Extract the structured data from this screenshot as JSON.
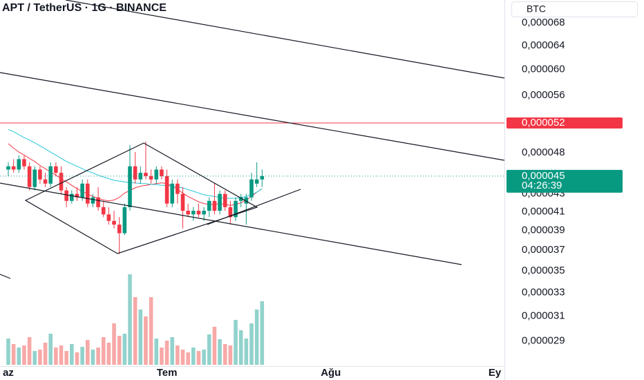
{
  "header": {
    "title": "APT / TetherUS · 1G · BINANCE",
    "currency_button": "BTC"
  },
  "chart_data": {
    "type": "candlestick",
    "categories": [
      "az",
      null,
      null,
      null,
      null,
      null,
      null,
      null,
      null,
      null,
      null,
      null,
      null,
      null,
      null,
      null,
      null,
      null,
      null,
      null,
      null,
      null,
      null,
      null,
      null,
      null,
      null,
      null,
      null,
      null,
      "Tem",
      null,
      null,
      null,
      null,
      null,
      null,
      null,
      null,
      null,
      null,
      null,
      null,
      null,
      null,
      null,
      null,
      null,
      null,
      null,
      null,
      null,
      null,
      null,
      null,
      null,
      null,
      null,
      null,
      null,
      null,
      "Ağu",
      null,
      null,
      null,
      null,
      null,
      null,
      null,
      null,
      null,
      null,
      null,
      null,
      null,
      null,
      null,
      null,
      null,
      null,
      null,
      null,
      null,
      null,
      null,
      null,
      null,
      null,
      null,
      null,
      null,
      null,
      "Ey"
    ],
    "open": [
      4.59e-05,
      4.63e-05,
      4.59e-05,
      4.72e-05,
      4.63e-05,
      4.38e-05,
      4.59e-05,
      4.47e-05,
      4.42e-05,
      4.63e-05,
      4.55e-05,
      4.34e-05,
      4.22e-05,
      4.3e-05,
      4.26e-05,
      4.42e-05,
      4.19e-05,
      4.26e-05,
      4.15e-05,
      4.07e-05,
      4e-05,
      3.96e-05,
      3.87e-05,
      4.15e-05,
      4.63e-05,
      4.47e-05,
      4.55e-05,
      4.51e-05,
      4.47e-05,
      4.59e-05,
      4.51e-05,
      4.19e-05,
      4.42e-05,
      4.3e-05,
      4.11e-05,
      4.07e-05,
      4.11e-05,
      4.07e-05,
      4.11e-05,
      4.22e-05,
      4.11e-05,
      4.3e-05,
      4.15e-05,
      4.04e-05,
      4.22e-05,
      4.19e-05,
      4.26e-05,
      4.42e-05,
      4.47e-05,
      null,
      null,
      null,
      null,
      null,
      null,
      null,
      null,
      null,
      null,
      null,
      null,
      null,
      null,
      null,
      null,
      null,
      null,
      null,
      null,
      null,
      null,
      null,
      null,
      null,
      null,
      null,
      null,
      null,
      null,
      null,
      null,
      null,
      null,
      null,
      null,
      null,
      null,
      null,
      null,
      null,
      null,
      null,
      null
    ],
    "high": [
      4.68e-05,
      4.72e-05,
      4.77e-05,
      4.77e-05,
      4.68e-05,
      4.63e-05,
      4.63e-05,
      4.55e-05,
      4.68e-05,
      4.68e-05,
      4.63e-05,
      4.38e-05,
      4.34e-05,
      4.38e-05,
      4.47e-05,
      4.47e-05,
      4.3e-05,
      4.38e-05,
      4.22e-05,
      4.15e-05,
      4.11e-05,
      4.04e-05,
      4.19e-05,
      4.9e-05,
      4.81e-05,
      4.63e-05,
      4.95e-05,
      4.59e-05,
      4.63e-05,
      4.63e-05,
      4.59e-05,
      4.47e-05,
      4.47e-05,
      4.38e-05,
      4.19e-05,
      4.15e-05,
      4.19e-05,
      4.15e-05,
      4.26e-05,
      4.42e-05,
      4.34e-05,
      4.34e-05,
      4.22e-05,
      4.26e-05,
      4.3e-05,
      4.3e-05,
      4.55e-05,
      4.68e-05,
      4.59e-05,
      null,
      null,
      null,
      null,
      null,
      null,
      null,
      null,
      null,
      null,
      null,
      null,
      null,
      null,
      null,
      null,
      null,
      null,
      null,
      null,
      null,
      null,
      null,
      null,
      null,
      null,
      null,
      null,
      null,
      null,
      null,
      null,
      null,
      null,
      null,
      null,
      null,
      null,
      null,
      null,
      null,
      null,
      null,
      null
    ],
    "low": [
      4.51e-05,
      4.55e-05,
      4.55e-05,
      4.59e-05,
      4.34e-05,
      4.34e-05,
      4.42e-05,
      4.38e-05,
      4.38e-05,
      4.51e-05,
      4.3e-05,
      4.15e-05,
      4.19e-05,
      4.22e-05,
      4.22e-05,
      4.15e-05,
      4.15e-05,
      4.11e-05,
      4.04e-05,
      3.96e-05,
      3.92e-05,
      3.66e-05,
      3.85e-05,
      4.11e-05,
      4.42e-05,
      4.42e-05,
      4.47e-05,
      4.42e-05,
      4.42e-05,
      4.47e-05,
      4.15e-05,
      4.15e-05,
      4.19e-05,
      3.92e-05,
      4.04e-05,
      4e-05,
      4.04e-05,
      4e-05,
      4.04e-05,
      4.07e-05,
      4.07e-05,
      4.11e-05,
      3.96e-05,
      4e-05,
      4.15e-05,
      3.96e-05,
      4.22e-05,
      4.38e-05,
      4.38e-05,
      null,
      null,
      null,
      null,
      null,
      null,
      null,
      null,
      null,
      null,
      null,
      null,
      null,
      null,
      null,
      null,
      null,
      null,
      null,
      null,
      null,
      null,
      null,
      null,
      null,
      null,
      null,
      null,
      null,
      null,
      null,
      null,
      null,
      null,
      null,
      null,
      null,
      null,
      null,
      null,
      null,
      null,
      null,
      null
    ],
    "close": [
      4.63e-05,
      4.59e-05,
      4.72e-05,
      4.63e-05,
      4.38e-05,
      4.59e-05,
      4.47e-05,
      4.42e-05,
      4.63e-05,
      4.55e-05,
      4.34e-05,
      4.22e-05,
      4.3e-05,
      4.26e-05,
      4.42e-05,
      4.19e-05,
      4.26e-05,
      4.15e-05,
      4.07e-05,
      4e-05,
      3.96e-05,
      3.87e-05,
      4.15e-05,
      4.63e-05,
      4.47e-05,
      4.55e-05,
      4.51e-05,
      4.47e-05,
      4.59e-05,
      4.51e-05,
      4.19e-05,
      4.42e-05,
      4.3e-05,
      4.11e-05,
      4.07e-05,
      4.11e-05,
      4.07e-05,
      4.11e-05,
      4.22e-05,
      4.11e-05,
      4.3e-05,
      4.15e-05,
      4.04e-05,
      4.22e-05,
      4.26e-05,
      4.26e-05,
      4.47e-05,
      4.47e-05,
      4.51e-05,
      null,
      null,
      null,
      null,
      null,
      null,
      null,
      null,
      null,
      null,
      null,
      null,
      null,
      null,
      null,
      null,
      null,
      null,
      null,
      null,
      null,
      null,
      null,
      null,
      null,
      null,
      null,
      null,
      null,
      null,
      null,
      null,
      null,
      null,
      null,
      null,
      null,
      null,
      null,
      null,
      null,
      null,
      null,
      null
    ],
    "volume": [
      38,
      30,
      25,
      28,
      40,
      20,
      22,
      32,
      45,
      25,
      28,
      20,
      30,
      18,
      26,
      36,
      22,
      25,
      40,
      32,
      60,
      42,
      45,
      131,
      98,
      80,
      70,
      98,
      38,
      25,
      35,
      40,
      28,
      22,
      18,
      25,
      20,
      22,
      44,
      55,
      37,
      30,
      28,
      65,
      50,
      38,
      60,
      80,
      92,
      null,
      null,
      null,
      null,
      null,
      null,
      null,
      null,
      null,
      null,
      null,
      null,
      null,
      null,
      null,
      null,
      null,
      null,
      null,
      null,
      null,
      null,
      null,
      null,
      null,
      null,
      null,
      null,
      null,
      null,
      null,
      null,
      null,
      null,
      null,
      null,
      null,
      null,
      null,
      null,
      null,
      null,
      null,
      null
    ],
    "moving_averages": [
      {
        "color": "#f23645",
        "values": [
          4.92e-05,
          4.86e-05,
          4.81e-05,
          4.77e-05,
          4.73e-05,
          4.69e-05,
          4.64e-05,
          4.6e-05,
          4.56e-05,
          4.52e-05,
          4.48e-05,
          4.44e-05,
          4.4e-05,
          4.36e-05,
          4.33e-05,
          4.3e-05,
          4.27e-05,
          4.25e-05,
          4.23e-05,
          4.22e-05,
          4.23e-05,
          4.26e-05,
          4.31e-05,
          4.34e-05,
          4.37e-05,
          4.39e-05,
          4.4e-05,
          4.41e-05,
          4.42e-05,
          4.43e-05,
          4.42e-05,
          4.39e-05,
          4.35e-05,
          4.31e-05,
          4.27e-05,
          4.24e-05,
          4.21e-05,
          4.19e-05,
          4.18e-05,
          4.18e-05,
          4.19e-05,
          4.18e-05,
          4.17e-05,
          4.18e-05,
          4.2e-05,
          4.23e-05,
          4.27e-05,
          4.32e-05,
          4.36e-05,
          null,
          null,
          null,
          null,
          null,
          null,
          null,
          null,
          null,
          null,
          null,
          null,
          null,
          null,
          null,
          null,
          null,
          null,
          null,
          null,
          null,
          null,
          null,
          null,
          null,
          null,
          null,
          null,
          null,
          null,
          null,
          null,
          null,
          null,
          null,
          null,
          null,
          null,
          null,
          null,
          null,
          null,
          null,
          null
        ]
      },
      {
        "color": "#26c6da",
        "values": [
          5.11e-05,
          5.08e-05,
          5.04e-05,
          5e-05,
          4.97e-05,
          4.93e-05,
          4.89e-05,
          4.85e-05,
          4.81e-05,
          4.77e-05,
          4.73e-05,
          4.69e-05,
          4.66e-05,
          4.63e-05,
          4.6e-05,
          4.57e-05,
          4.55e-05,
          4.52e-05,
          4.5e-05,
          4.48e-05,
          4.46e-05,
          4.45e-05,
          4.44e-05,
          4.43e-05,
          4.43e-05,
          4.42e-05,
          4.42e-05,
          4.41e-05,
          4.41e-05,
          4.4e-05,
          4.4e-05,
          4.39e-05,
          4.38e-05,
          4.37e-05,
          4.35e-05,
          4.33e-05,
          4.31e-05,
          4.29e-05,
          4.28e-05,
          4.27e-05,
          4.26e-05,
          4.25e-05,
          4.25e-05,
          4.25e-05,
          4.26e-05,
          4.27e-05,
          4.29e-05,
          4.32e-05,
          4.36e-05,
          null,
          null,
          null,
          null,
          null,
          null,
          null,
          null,
          null,
          null,
          null,
          null,
          null,
          null,
          null,
          null,
          null,
          null,
          null,
          null,
          null,
          null,
          null,
          null,
          null,
          null,
          null,
          null,
          null,
          null,
          null,
          null,
          null,
          null,
          null,
          null,
          null,
          null,
          null,
          null,
          null,
          null,
          null,
          null
        ]
      }
    ],
    "up_color": "#089981",
    "down_color": "#f23645",
    "volume_up_color": "#92d2cc",
    "volume_down_color": "#f7a9a7",
    "ylim": [
      2.71e-05,
      7.23e-05
    ],
    "log_scale": true,
    "yticks": [
      {
        "value": 6.8e-05,
        "label": "0,000068"
      },
      {
        "value": 6.4e-05,
        "label": "0,000064"
      },
      {
        "value": 6e-05,
        "label": "0,000060"
      },
      {
        "value": 5.6e-05,
        "label": "0,000056"
      },
      {
        "value": 4.8e-05,
        "label": "0,000048"
      },
      {
        "value": 4.3e-05,
        "label": "0,000043"
      },
      {
        "value": 4.1e-05,
        "label": "0,000041"
      },
      {
        "value": 3.9e-05,
        "label": "0,000039"
      },
      {
        "value": 3.7e-05,
        "label": "0,000037"
      },
      {
        "value": 3.5e-05,
        "label": "0,000035"
      },
      {
        "value": 3.3e-05,
        "label": "0,000033"
      },
      {
        "value": 3.1e-05,
        "label": "0,000031"
      },
      {
        "value": 2.9e-05,
        "label": "0,000029"
      }
    ],
    "volume_lim": [
      0,
      180
    ],
    "alert_line": {
      "value": 5.2e-05,
      "label": "0,000052",
      "color": "#f23645"
    },
    "last_price": {
      "value": 4.51e-05,
      "label": "0,000045",
      "countdown": "04:26:39",
      "color": "#089981"
    }
  }
}
